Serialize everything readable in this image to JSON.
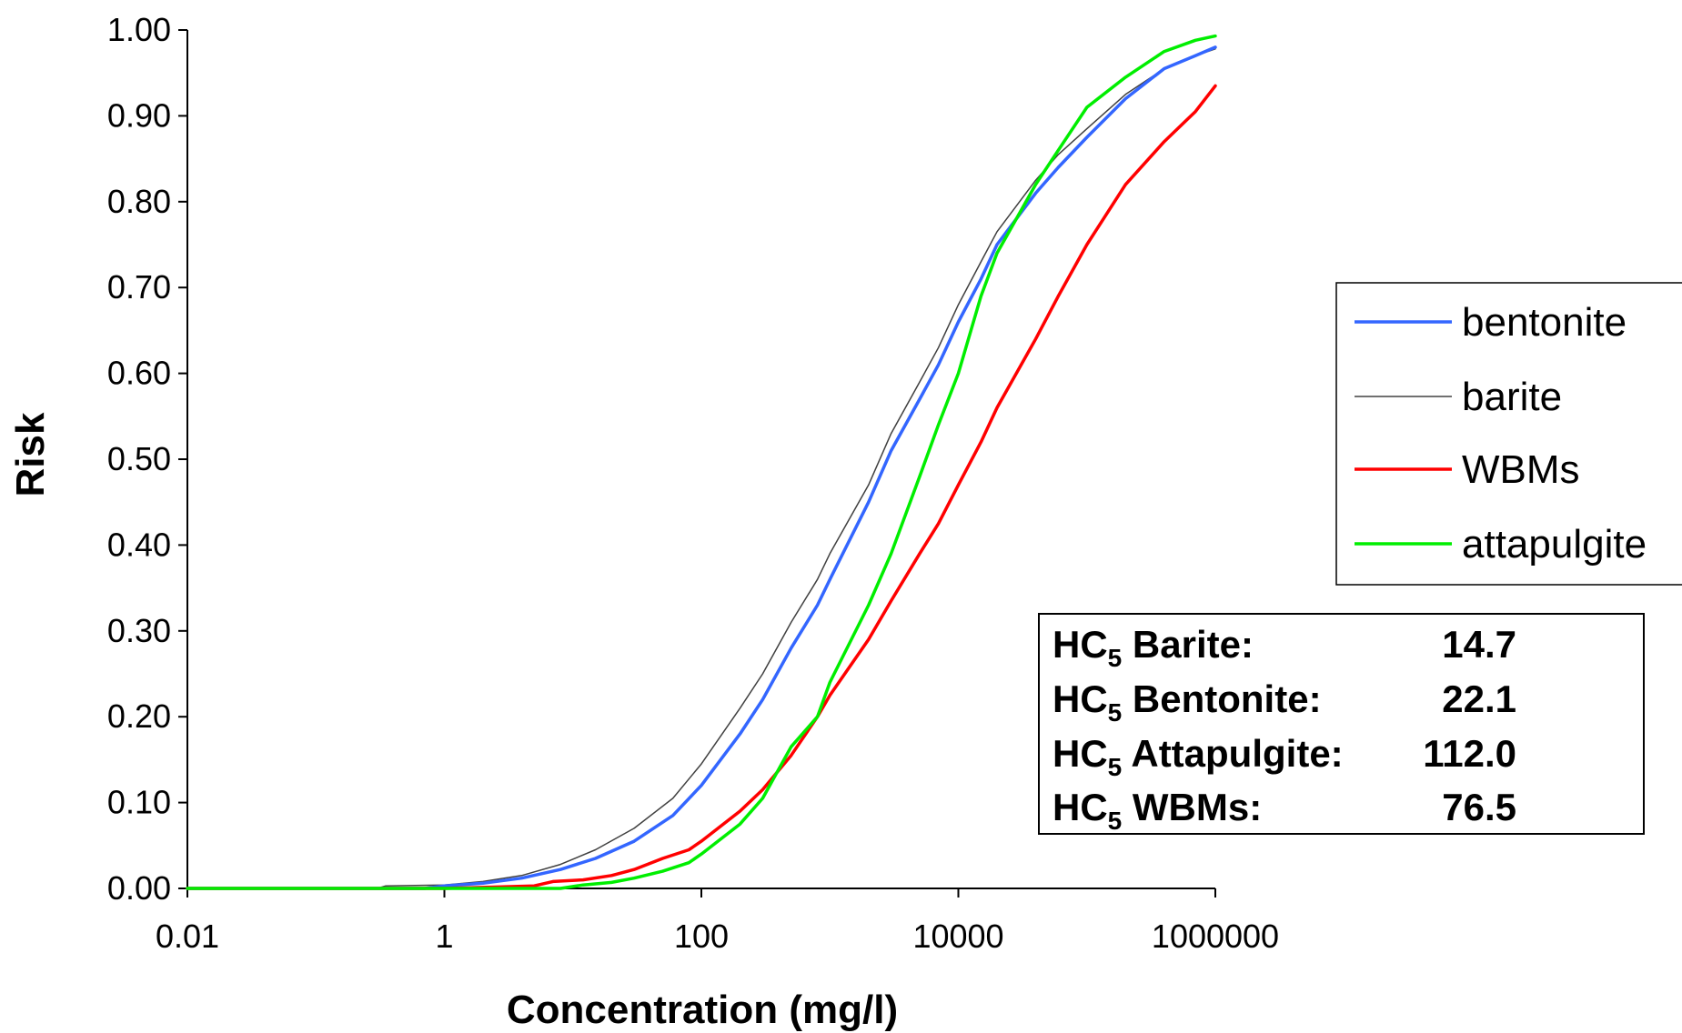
{
  "chart_data": {
    "type": "line",
    "title": "",
    "xlabel": "Concentration (mg/l)",
    "ylabel": "Risk",
    "x_scale": "log",
    "xlim": [
      0.01,
      1000000
    ],
    "ylim": [
      0,
      1
    ],
    "x_ticks": [
      "0.01",
      "1",
      "100",
      "10000",
      "1000000"
    ],
    "y_ticks": [
      "0.00",
      "0.10",
      "0.20",
      "0.30",
      "0.40",
      "0.50",
      "0.60",
      "0.70",
      "0.80",
      "0.90",
      "1.00"
    ],
    "grid": false,
    "legend_position": "right",
    "series": [
      {
        "name": "bentonite",
        "color": "#3366ff",
        "points": [
          [
            0.01,
            0
          ],
          [
            0.7,
            0
          ],
          [
            1,
            0.003
          ],
          [
            2,
            0.006
          ],
          [
            4,
            0.012
          ],
          [
            8,
            0.022
          ],
          [
            15,
            0.035
          ],
          [
            30,
            0.055
          ],
          [
            60,
            0.085
          ],
          [
            100,
            0.12
          ],
          [
            200,
            0.18
          ],
          [
            300,
            0.22
          ],
          [
            500,
            0.28
          ],
          [
            800,
            0.33
          ],
          [
            1000,
            0.36
          ],
          [
            2000,
            0.45
          ],
          [
            3000,
            0.51
          ],
          [
            5000,
            0.57
          ],
          [
            7000,
            0.61
          ],
          [
            10000,
            0.66
          ],
          [
            15000,
            0.71
          ],
          [
            20000,
            0.75
          ],
          [
            40000,
            0.81
          ],
          [
            60000,
            0.84
          ],
          [
            100000,
            0.875
          ],
          [
            200000,
            0.92
          ],
          [
            400000,
            0.955
          ],
          [
            700000,
            0.97
          ],
          [
            1000000,
            0.98
          ]
        ]
      },
      {
        "name": "barite",
        "color": "#404040",
        "points": [
          [
            0.01,
            0
          ],
          [
            0.3,
            0
          ],
          [
            0.35,
            0.003
          ],
          [
            1,
            0.004
          ],
          [
            2,
            0.008
          ],
          [
            4,
            0.015
          ],
          [
            8,
            0.028
          ],
          [
            15,
            0.045
          ],
          [
            30,
            0.07
          ],
          [
            60,
            0.105
          ],
          [
            100,
            0.145
          ],
          [
            200,
            0.21
          ],
          [
            300,
            0.25
          ],
          [
            500,
            0.31
          ],
          [
            800,
            0.36
          ],
          [
            1000,
            0.39
          ],
          [
            2000,
            0.47
          ],
          [
            3000,
            0.53
          ],
          [
            5000,
            0.59
          ],
          [
            7000,
            0.63
          ],
          [
            10000,
            0.68
          ],
          [
            15000,
            0.73
          ],
          [
            20000,
            0.765
          ],
          [
            40000,
            0.825
          ],
          [
            60000,
            0.855
          ],
          [
            100000,
            0.885
          ],
          [
            200000,
            0.925
          ],
          [
            400000,
            0.955
          ],
          [
            700000,
            0.97
          ],
          [
            1000000,
            0.978
          ]
        ]
      },
      {
        "name": "WBMs",
        "color": "#ff0000",
        "points": [
          [
            0.01,
            0
          ],
          [
            1,
            0
          ],
          [
            5,
            0.003
          ],
          [
            7,
            0.008
          ],
          [
            12,
            0.01
          ],
          [
            20,
            0.015
          ],
          [
            30,
            0.022
          ],
          [
            50,
            0.035
          ],
          [
            80,
            0.045
          ],
          [
            100,
            0.055
          ],
          [
            200,
            0.09
          ],
          [
            300,
            0.115
          ],
          [
            500,
            0.155
          ],
          [
            800,
            0.2
          ],
          [
            1000,
            0.225
          ],
          [
            2000,
            0.29
          ],
          [
            3000,
            0.335
          ],
          [
            5000,
            0.39
          ],
          [
            7000,
            0.425
          ],
          [
            10000,
            0.47
          ],
          [
            15000,
            0.52
          ],
          [
            20000,
            0.56
          ],
          [
            40000,
            0.64
          ],
          [
            60000,
            0.69
          ],
          [
            100000,
            0.75
          ],
          [
            200000,
            0.82
          ],
          [
            400000,
            0.87
          ],
          [
            700000,
            0.905
          ],
          [
            1000000,
            0.935
          ]
        ]
      },
      {
        "name": "attapulgite",
        "color": "#00ee00",
        "points": [
          [
            0.01,
            0
          ],
          [
            8,
            0
          ],
          [
            12,
            0.004
          ],
          [
            20,
            0.007
          ],
          [
            30,
            0.012
          ],
          [
            50,
            0.02
          ],
          [
            80,
            0.03
          ],
          [
            100,
            0.04
          ],
          [
            200,
            0.075
          ],
          [
            300,
            0.105
          ],
          [
            500,
            0.165
          ],
          [
            800,
            0.2
          ],
          [
            1000,
            0.24
          ],
          [
            2000,
            0.33
          ],
          [
            3000,
            0.39
          ],
          [
            5000,
            0.48
          ],
          [
            7000,
            0.54
          ],
          [
            10000,
            0.6
          ],
          [
            15000,
            0.69
          ],
          [
            20000,
            0.74
          ],
          [
            40000,
            0.82
          ],
          [
            60000,
            0.86
          ],
          [
            100000,
            0.91
          ],
          [
            200000,
            0.945
          ],
          [
            400000,
            0.975
          ],
          [
            700000,
            0.988
          ],
          [
            1000000,
            0.993
          ]
        ]
      }
    ]
  },
  "hc5": {
    "prefix": "HC",
    "subscript": "5",
    "rows": [
      {
        "label": "Barite:",
        "value": "14.7"
      },
      {
        "label": "Bentonite:",
        "value": "22.1"
      },
      {
        "label": "Attapulgite:",
        "value": "112.0"
      },
      {
        "label": "WBMs:",
        "value": "76.5"
      }
    ]
  }
}
